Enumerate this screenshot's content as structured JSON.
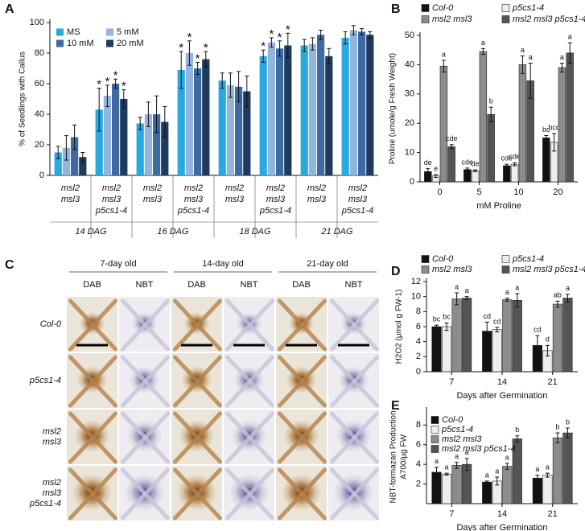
{
  "chart_data": [
    {
      "type": "bar",
      "panel": "A",
      "ylabel": "% of Seedlings with Callus",
      "categories": [
        [
          "msl2",
          "msl3"
        ],
        [
          "msl2",
          "msl3",
          "p5cs1-4"
        ],
        [
          "msl2",
          "msl3"
        ],
        [
          "msl2",
          "msl3",
          "p5cs1-4"
        ],
        [
          "msl2",
          "msl3"
        ],
        [
          "msl2",
          "msl3",
          "p5cs1-4"
        ],
        [
          "msl2",
          "msl3"
        ],
        [
          "msl2",
          "msl3",
          "p5cs1-4"
        ]
      ],
      "group_labels": [
        "14 DAG",
        "16 DAG",
        "18 DAG",
        "21 DAG"
      ],
      "ylim": [
        0,
        100
      ],
      "yticks": [
        0,
        20,
        40,
        60,
        80,
        100
      ],
      "series": [
        {
          "name": "MS",
          "color": "#29a9df",
          "values": [
            15,
            43,
            34,
            69,
            62,
            78,
            85,
            90
          ],
          "errors": [
            4,
            14,
            4,
            12,
            5,
            4,
            4,
            4
          ],
          "annotations": [
            null,
            "*",
            null,
            "*",
            null,
            "*",
            null,
            null
          ]
        },
        {
          "name": "5 mM",
          "color": "#93b4dc",
          "values": [
            18,
            52,
            40,
            80,
            59,
            87,
            86,
            95
          ],
          "errors": [
            8,
            7,
            8,
            8,
            8,
            3,
            4,
            3
          ],
          "annotations": [
            null,
            "*",
            null,
            "*",
            null,
            "*",
            null,
            null
          ]
        },
        {
          "name": "10 mM",
          "color": "#3d6aa0",
          "values": [
            25,
            60,
            40,
            70,
            58,
            83,
            92,
            94
          ],
          "errors": [
            8,
            3,
            12,
            4,
            10,
            5,
            3,
            2
          ],
          "annotations": [
            null,
            "*",
            null,
            "*",
            null,
            "*",
            null,
            null
          ]
        },
        {
          "name": "20 mM",
          "color": "#1e3b5f",
          "values": [
            12,
            50,
            35,
            76,
            55,
            85,
            78,
            92
          ],
          "errors": [
            3,
            6,
            10,
            5,
            10,
            8,
            5,
            2
          ],
          "annotations": [
            null,
            "*",
            null,
            "*",
            null,
            "*",
            null,
            null
          ]
        }
      ]
    },
    {
      "type": "bar",
      "panel": "B",
      "ylabel": "Proline (umole/g Fresh Weight)",
      "xlabel": "mM Proline",
      "categories": [
        "0",
        "5",
        "10",
        "20"
      ],
      "ylim": [
        0,
        50
      ],
      "yticks": [
        0,
        10,
        20,
        30,
        40,
        50
      ],
      "series": [
        {
          "name": "Col-0",
          "color": "#111111",
          "values": [
            3.5,
            4.2,
            5.5,
            15
          ],
          "errors": [
            1,
            0.5,
            0.5,
            0.8
          ],
          "annotations": [
            "de",
            "cde",
            "cde",
            "bc"
          ]
        },
        {
          "name": "p5cs1-4",
          "color": "#eeeeee",
          "values": [
            2,
            3.8,
            6,
            13.5
          ],
          "errors": [
            0.5,
            0.3,
            0.5,
            3
          ],
          "annotations": [
            "e",
            "de",
            "cde",
            "bcd"
          ]
        },
        {
          "name": "msl2 msl3",
          "color": "#8c8c8c",
          "values": [
            39.5,
            44.5,
            40,
            39
          ],
          "errors": [
            2,
            1,
            3,
            1.5
          ],
          "annotations": [
            "a",
            "a",
            "a",
            "a"
          ]
        },
        {
          "name": "msl2 msl3 p5cs1-4",
          "color": "#555555",
          "values": [
            12,
            23,
            34.5,
            44
          ],
          "errors": [
            0.7,
            2.5,
            6,
            3.5
          ],
          "annotations": [
            "cde",
            "b",
            "a",
            "a"
          ]
        }
      ]
    },
    {
      "type": "bar",
      "panel": "D",
      "ylabel": "H2O2 (μmol g FW-1)",
      "xlabel": "Days after Germination",
      "categories": [
        "7",
        "14",
        "21"
      ],
      "ylim": [
        0,
        12
      ],
      "yticks": [
        0,
        2,
        4,
        6,
        8,
        10,
        12
      ],
      "series": [
        {
          "name": "Col-0",
          "color": "#111111",
          "values": [
            6,
            5.4,
            3.5
          ],
          "errors": [
            0.2,
            1.2,
            1.3
          ],
          "annotations": [
            "bc",
            "cd",
            "cd"
          ]
        },
        {
          "name": "p5cs1-4",
          "color": "#eeeeee",
          "values": [
            6,
            5.6,
            2.8
          ],
          "errors": [
            0.5,
            0.3,
            0.7
          ],
          "annotations": [
            "bc",
            "cd",
            "d"
          ]
        },
        {
          "name": "msl2 msl3",
          "color": "#8c8c8c",
          "values": [
            9.7,
            9.6,
            9
          ],
          "errors": [
            0.8,
            0.2,
            0.4
          ],
          "annotations": [
            "a",
            "a",
            "ab"
          ]
        },
        {
          "name": "msl2 msl3 p5cs1-4",
          "color": "#555555",
          "values": [
            9.8,
            9.5,
            9.8
          ],
          "errors": [
            0.2,
            0.9,
            0.5
          ],
          "annotations": [
            "a",
            "a",
            "a"
          ]
        }
      ]
    },
    {
      "type": "bar",
      "panel": "E",
      "ylabel": [
        "NBT-formazan Production",
        "A700/µg FW"
      ],
      "xlabel": "Days after Germination",
      "categories": [
        "7",
        "14",
        "21"
      ],
      "ylim": [
        0,
        9.5
      ],
      "yticks": [
        2,
        4,
        6,
        8
      ],
      "series": [
        {
          "name": "Col-0",
          "color": "#111111",
          "values": [
            3.2,
            2.2,
            2.6
          ],
          "errors": [
            0.5,
            0.1,
            0.3
          ],
          "annotations": [
            "a",
            "a",
            "a"
          ]
        },
        {
          "name": "p5cs1-4",
          "color": "#eeeeee",
          "values": [
            3,
            2.3,
            2.9
          ],
          "errors": [
            0.1,
            0.4,
            0.2
          ],
          "annotations": [
            "a",
            "a",
            "a"
          ]
        },
        {
          "name": "msl2 msl3",
          "color": "#8c8c8c",
          "values": [
            3.9,
            3.8,
            6.7
          ],
          "errors": [
            0.3,
            0.3,
            0.5
          ],
          "annotations": [
            "a",
            "a",
            "b"
          ]
        },
        {
          "name": "msl2 msl3 p5cs1-4",
          "color": "#555555",
          "values": [
            4,
            6.6,
            7.2
          ],
          "errors": [
            0.6,
            0.3,
            0.5
          ],
          "annotations": [
            "a",
            "b",
            "b"
          ]
        }
      ]
    }
  ],
  "panel_c": {
    "panel": "C",
    "ages": [
      "7-day old",
      "14-day old",
      "21-day old"
    ],
    "stains": [
      "DAB",
      "NBT",
      "DAB",
      "NBT",
      "DAB",
      "NBT"
    ],
    "rows": [
      [
        "Col-0"
      ],
      [
        "p5cs1-4"
      ],
      [
        "msl2",
        "msl3"
      ],
      [
        "msl2",
        "msl3",
        "p5cs1-4"
      ]
    ]
  }
}
